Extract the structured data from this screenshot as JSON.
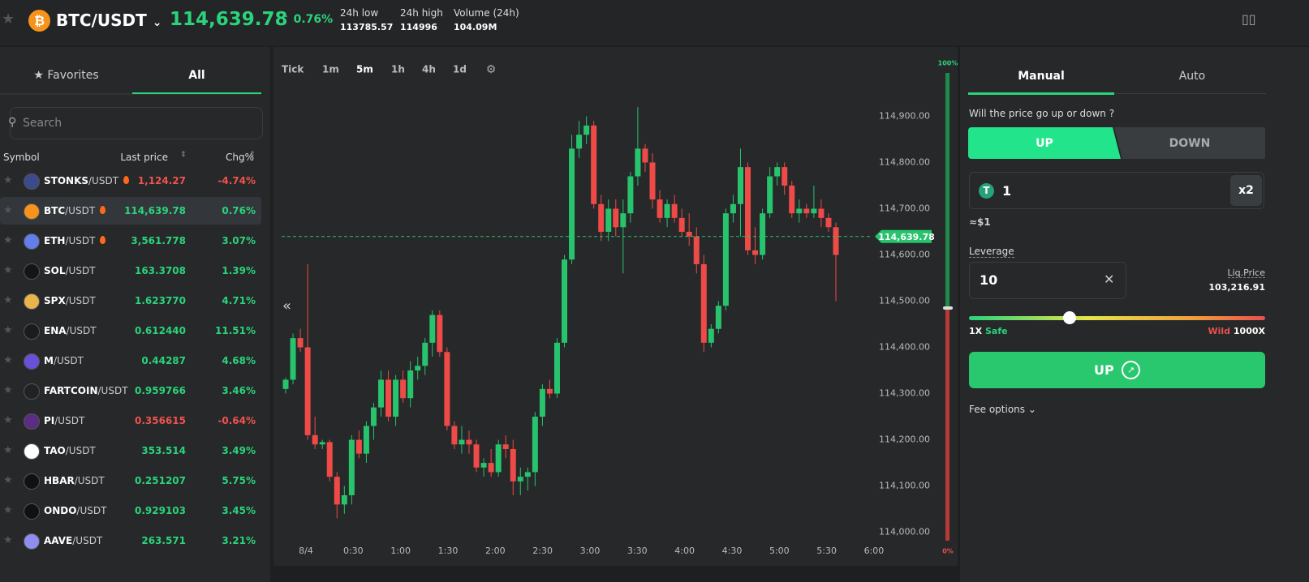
{
  "header": {
    "base": "BTC",
    "quote": "/USDT",
    "price": "114,639.78",
    "change": "0.76%",
    "stats": [
      {
        "label": "24h low",
        "value": "113785.57"
      },
      {
        "label": "24h high",
        "value": "114996"
      },
      {
        "label": "Volume (24h)",
        "value": "104.09M"
      }
    ]
  },
  "sidebar": {
    "tabs": [
      "Favorites",
      "All"
    ],
    "active_tab": 1,
    "search_placeholder": "Search",
    "columns": [
      "Symbol",
      "Last price",
      "Chg%"
    ],
    "selected_row": 1,
    "rows": [
      {
        "base": "STONKS",
        "quote": "/USDT",
        "hot": true,
        "price": "1,124.27",
        "change": "-4.74%"
      },
      {
        "base": "BTC",
        "quote": "/USDT",
        "hot": true,
        "price": "114,639.78",
        "change": "0.76%"
      },
      {
        "base": "ETH",
        "quote": "/USDT",
        "hot": true,
        "price": "3,561.778",
        "change": "3.07%"
      },
      {
        "base": "SOL",
        "quote": "/USDT",
        "hot": false,
        "price": "163.3708",
        "change": "1.39%"
      },
      {
        "base": "SPX",
        "quote": "/USDT",
        "hot": false,
        "price": "1.623770",
        "change": "4.71%"
      },
      {
        "base": "ENA",
        "quote": "/USDT",
        "hot": false,
        "price": "0.612440",
        "change": "11.51%"
      },
      {
        "base": "M",
        "quote": "/USDT",
        "hot": false,
        "price": "0.44287",
        "change": "4.68%"
      },
      {
        "base": "FARTCOIN",
        "quote": "/USDT",
        "hot": false,
        "price": "0.959766",
        "change": "3.46%"
      },
      {
        "base": "PI",
        "quote": "/USDT",
        "hot": false,
        "price": "0.356615",
        "change": "-0.64%"
      },
      {
        "base": "TAO",
        "quote": "/USDT",
        "hot": false,
        "price": "353.514",
        "change": "3.49%"
      },
      {
        "base": "HBAR",
        "quote": "/USDT",
        "hot": false,
        "price": "0.251207",
        "change": "5.75%"
      },
      {
        "base": "ONDO",
        "quote": "/USDT",
        "hot": false,
        "price": "0.929103",
        "change": "3.45%"
      },
      {
        "base": "AAVE",
        "quote": "/USDT",
        "hot": false,
        "price": "263.571",
        "change": "3.21%"
      }
    ]
  },
  "chart": {
    "type": "candlestick",
    "intervals": [
      "Tick",
      "1m",
      "5m",
      "1h",
      "4h",
      "1d"
    ],
    "active_interval": 2,
    "candles": [
      [
        114310,
        114335,
        114300,
        114330
      ],
      [
        114330,
        114430,
        114320,
        114420
      ],
      [
        114420,
        114440,
        114390,
        114400
      ],
      [
        114400,
        114580,
        114200,
        114210
      ],
      [
        114210,
        114250,
        114180,
        114190
      ],
      [
        114190,
        114200,
        114180,
        114195
      ],
      [
        114195,
        114200,
        114110,
        114120
      ],
      [
        114120,
        114130,
        114030,
        114060
      ],
      [
        114060,
        114100,
        114040,
        114080
      ],
      [
        114080,
        114210,
        114060,
        114200
      ],
      [
        114200,
        114220,
        114160,
        114170
      ],
      [
        114170,
        114240,
        114150,
        114230
      ],
      [
        114230,
        114280,
        114200,
        114270
      ],
      [
        114270,
        114350,
        114250,
        114330
      ],
      [
        114330,
        114350,
        114240,
        114250
      ],
      [
        114250,
        114340,
        114230,
        114330
      ],
      [
        114330,
        114350,
        114280,
        114290
      ],
      [
        114290,
        114370,
        114270,
        114350
      ],
      [
        114350,
        114380,
        114330,
        114360
      ],
      [
        114360,
        114420,
        114340,
        114410
      ],
      [
        114410,
        114480,
        114380,
        114470
      ],
      [
        114470,
        114480,
        114380,
        114390
      ],
      [
        114390,
        114400,
        114220,
        114230
      ],
      [
        114230,
        114240,
        114180,
        114190
      ],
      [
        114190,
        114230,
        114170,
        114200
      ],
      [
        114200,
        114220,
        114170,
        114190
      ],
      [
        114190,
        114200,
        114130,
        114140
      ],
      [
        114140,
        114160,
        114120,
        114150
      ],
      [
        114150,
        114180,
        114120,
        114130
      ],
      [
        114130,
        114200,
        114120,
        114190
      ],
      [
        114190,
        114210,
        114160,
        114180
      ],
      [
        114180,
        114200,
        114080,
        114110
      ],
      [
        114110,
        114140,
        114080,
        114120
      ],
      [
        114120,
        114140,
        114090,
        114130
      ],
      [
        114130,
        114260,
        114100,
        114250
      ],
      [
        114250,
        114320,
        114230,
        114310
      ],
      [
        114310,
        114330,
        114290,
        114300
      ],
      [
        114300,
        114420,
        114290,
        114410
      ],
      [
        114410,
        114600,
        114400,
        114590
      ],
      [
        114590,
        114860,
        114580,
        114830
      ],
      [
        114830,
        114890,
        114810,
        114860
      ],
      [
        114860,
        114900,
        114840,
        114880
      ],
      [
        114880,
        114890,
        114700,
        114710
      ],
      [
        114710,
        114730,
        114630,
        114650
      ],
      [
        114650,
        114720,
        114630,
        114700
      ],
      [
        114700,
        114720,
        114640,
        114660
      ],
      [
        114660,
        114720,
        114560,
        114690
      ],
      [
        114690,
        114780,
        114670,
        114770
      ],
      [
        114770,
        114920,
        114750,
        114830
      ],
      [
        114830,
        114840,
        114780,
        114800
      ],
      [
        114800,
        114820,
        114700,
        114720
      ],
      [
        114720,
        114740,
        114670,
        114680
      ],
      [
        114680,
        114720,
        114660,
        114710
      ],
      [
        114710,
        114730,
        114670,
        114680
      ],
      [
        114680,
        114700,
        114640,
        114650
      ],
      [
        114650,
        114690,
        114620,
        114640
      ],
      [
        114640,
        114660,
        114560,
        114580
      ],
      [
        114580,
        114600,
        114390,
        114410
      ],
      [
        114410,
        114450,
        114400,
        114440
      ],
      [
        114440,
        114500,
        114430,
        114490
      ],
      [
        114490,
        114700,
        114480,
        114690
      ],
      [
        114690,
        114730,
        114670,
        114710
      ],
      [
        114710,
        114830,
        114640,
        114790
      ],
      [
        114790,
        114800,
        114600,
        114610
      ],
      [
        114610,
        114660,
        114580,
        114600
      ],
      [
        114600,
        114700,
        114590,
        114690
      ],
      [
        114690,
        114790,
        114680,
        114770
      ],
      [
        114770,
        114800,
        114750,
        114790
      ],
      [
        114790,
        114800,
        114730,
        114750
      ],
      [
        114750,
        114760,
        114680,
        114690
      ],
      [
        114690,
        114720,
        114670,
        114700
      ],
      [
        114700,
        114710,
        114680,
        114690
      ],
      [
        114690,
        114750,
        114680,
        114700
      ],
      [
        114700,
        114720,
        114660,
        114680
      ],
      [
        114680,
        114690,
        114650,
        114660
      ],
      [
        114660,
        114670,
        114500,
        114600
      ]
    ],
    "ylim": [
      113980,
      115020
    ],
    "grid": false,
    "yticks": [
      {
        "value": 114000,
        "label": "114,000.00"
      },
      {
        "value": 114100,
        "label": "114,100.00"
      },
      {
        "value": 114200,
        "label": "114,200.00"
      },
      {
        "value": 114300,
        "label": "114,300.00"
      },
      {
        "value": 114400,
        "label": "114,400.00"
      },
      {
        "value": 114500,
        "label": "114,500.00"
      },
      {
        "value": 114600,
        "label": "114,600.00"
      },
      {
        "value": 114700,
        "label": "114,700.00"
      },
      {
        "value": 114800,
        "label": "114,800.00"
      },
      {
        "value": 114900,
        "label": "114,900.00"
      }
    ],
    "xticks": [
      "8/4",
      "0:30",
      "1:00",
      "1:30",
      "2:00",
      "2:30",
      "3:00",
      "3:30",
      "4:00",
      "4:30",
      "5:00",
      "5:30",
      "6:00"
    ],
    "last_price": {
      "value": 114639.78,
      "label": "114,639.78"
    },
    "gauge_top": "100%",
    "gauge_bottom": "0%"
  },
  "trade": {
    "tabs": [
      "Manual",
      "Auto"
    ],
    "active_tab": 0,
    "question": "Will the price go up or down ?",
    "up": "UP",
    "down": "DOWN",
    "amount": "1",
    "multiplier": "x2",
    "approx": "≈$1",
    "leverage_label": "Leverage",
    "leverage": "10",
    "liq_label": "Liq.Price",
    "liq_value": "103,216.91",
    "min": "1X",
    "safe": "Safe",
    "wild": "Wild",
    "max": "1000X",
    "button": "UP",
    "fee": "Fee options"
  }
}
